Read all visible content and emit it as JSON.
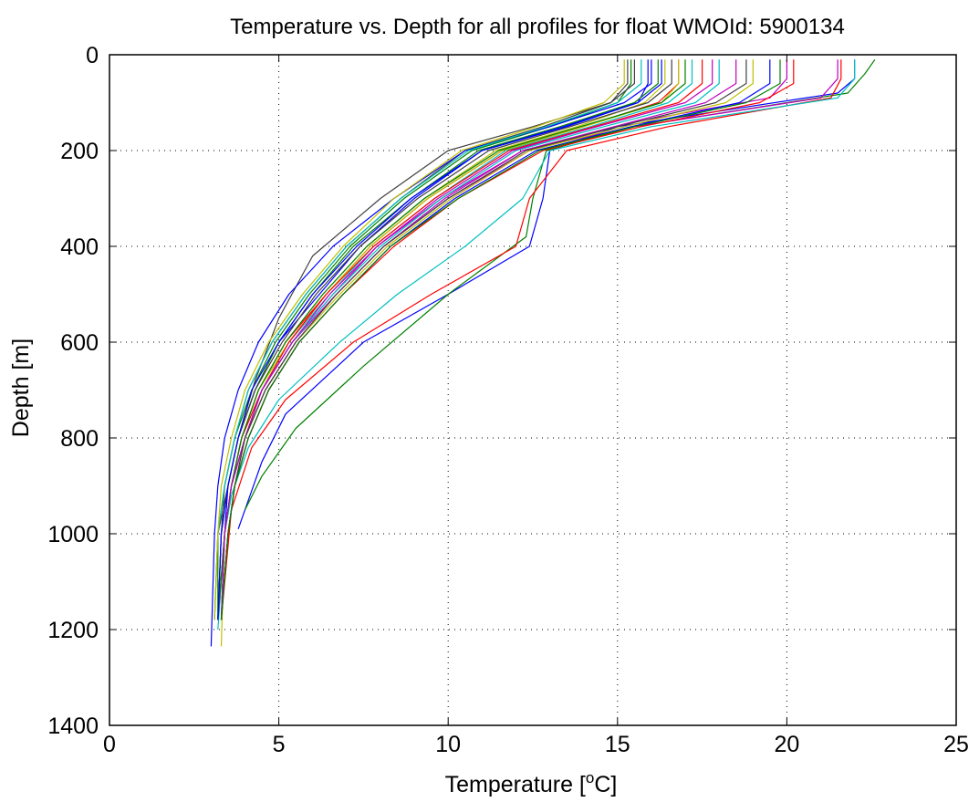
{
  "chart_data": {
    "type": "line",
    "title": "Temperature vs. Depth for all profiles for float WMOId: 5900134",
    "xlabel_prefix": "Temperature [",
    "xlabel_sup": "o",
    "xlabel_suffix": "C]",
    "ylabel": "Depth [m]",
    "xlim": [
      0,
      25
    ],
    "ylim": [
      0,
      1400
    ],
    "y_reversed": true,
    "x_ticks": [
      "0",
      "5",
      "10",
      "15",
      "20",
      "25"
    ],
    "y_ticks": [
      "0",
      "200",
      "400",
      "600",
      "800",
      "1000",
      "1200",
      "1400"
    ],
    "grid": "dotted",
    "legend": "none",
    "series": [
      {
        "color": "#0000ff",
        "x": [
          15.9,
          15.9,
          15.6,
          13.5,
          11.0,
          9.0,
          7.4,
          6.2,
          5.0,
          4.3,
          3.8,
          3.5,
          3.4,
          3.3
        ],
        "y": [
          10,
          60,
          100,
          150,
          200,
          300,
          400,
          500,
          600,
          700,
          800,
          900,
          1000,
          1180
        ]
      },
      {
        "color": "#008000",
        "x": [
          15.4,
          15.4,
          15.0,
          13.0,
          10.7,
          8.7,
          7.1,
          5.9,
          4.9,
          4.2,
          3.7,
          3.4,
          3.2,
          3.2
        ],
        "y": [
          10,
          60,
          100,
          150,
          200,
          300,
          400,
          500,
          600,
          700,
          800,
          900,
          1000,
          1180
        ]
      },
      {
        "color": "#ff0000",
        "x": [
          16.8,
          16.8,
          16.2,
          14.0,
          11.6,
          9.4,
          7.7,
          6.4,
          5.2,
          4.4,
          3.9,
          3.6,
          3.4,
          3.3
        ],
        "y": [
          10,
          60,
          100,
          150,
          200,
          300,
          400,
          500,
          600,
          700,
          800,
          900,
          1000,
          1180
        ]
      },
      {
        "color": "#00bfbf",
        "x": [
          17.2,
          17.2,
          16.5,
          14.2,
          11.7,
          9.6,
          7.8,
          6.5,
          5.3,
          4.5,
          4.0,
          3.6,
          3.4,
          3.3
        ],
        "y": [
          10,
          60,
          100,
          150,
          200,
          300,
          400,
          500,
          600,
          700,
          800,
          900,
          1000,
          1180
        ]
      },
      {
        "color": "#bf00bf",
        "x": [
          20.0,
          20.0,
          19.5,
          15.5,
          12.4,
          10.0,
          8.1,
          6.7,
          5.4,
          4.5,
          4.0,
          3.6,
          3.4,
          3.2
        ],
        "y": [
          10,
          50,
          90,
          140,
          200,
          300,
          400,
          500,
          600,
          700,
          800,
          900,
          1000,
          1180
        ]
      },
      {
        "color": "#bfbf00",
        "x": [
          16.4,
          16.4,
          15.8,
          13.8,
          11.4,
          9.3,
          7.6,
          6.3,
          5.2,
          4.4,
          3.9,
          3.6,
          3.4,
          3.3
        ],
        "y": [
          10,
          60,
          100,
          150,
          200,
          300,
          400,
          500,
          600,
          700,
          800,
          900,
          1000,
          1235
        ]
      },
      {
        "color": "#404040",
        "x": [
          15.3,
          15.3,
          14.8,
          12.8,
          10.5,
          8.6,
          7.0,
          5.8,
          4.8,
          4.1,
          3.7,
          3.4,
          3.3,
          3.2
        ],
        "y": [
          10,
          60,
          100,
          150,
          200,
          300,
          400,
          500,
          600,
          700,
          800,
          900,
          1000,
          1180
        ]
      },
      {
        "color": "#0000ff",
        "x": [
          22.0,
          22.0,
          21.5,
          15.0,
          13.0,
          12.8,
          12.4,
          10.0,
          7.5,
          5.2,
          4.5,
          4.0,
          3.8
        ],
        "y": [
          10,
          50,
          80,
          150,
          200,
          300,
          400,
          500,
          600,
          750,
          850,
          950,
          990
        ]
      },
      {
        "color": "#008000",
        "x": [
          22.6,
          22.3,
          21.8,
          15.5,
          12.9,
          12.5,
          12.3,
          10.0,
          7.5,
          5.5,
          4.5,
          4.0
        ],
        "y": [
          10,
          40,
          80,
          150,
          200,
          300,
          380,
          500,
          650,
          780,
          880,
          950
        ]
      },
      {
        "color": "#ff0000",
        "x": [
          21.6,
          21.6,
          21.3,
          16.5,
          13.5,
          12.4,
          12.0,
          9.5,
          7.2,
          5.2,
          4.2,
          3.6,
          3.3
        ],
        "y": [
          10,
          50,
          90,
          150,
          200,
          300,
          400,
          500,
          600,
          720,
          820,
          950,
          1180
        ]
      },
      {
        "color": "#00bfbf",
        "x": [
          22.0,
          22.0,
          21.5,
          16.0,
          13.0,
          12.2,
          10.5,
          8.5,
          6.8,
          5.0,
          4.1,
          3.6,
          3.4,
          3.2
        ],
        "y": [
          10,
          50,
          90,
          150,
          200,
          300,
          400,
          500,
          600,
          720,
          820,
          920,
          1000,
          1200
        ]
      },
      {
        "color": "#bf00bf",
        "x": [
          21.5,
          21.5,
          21.0,
          15.5,
          12.2,
          9.8,
          7.9,
          6.6,
          5.4,
          4.5,
          4.0,
          3.6,
          3.4,
          3.2
        ],
        "y": [
          10,
          50,
          90,
          150,
          200,
          300,
          400,
          500,
          600,
          700,
          800,
          900,
          1000,
          1180
        ]
      },
      {
        "color": "#bfbf00",
        "x": [
          16.8,
          16.8,
          16.3,
          14.0,
          11.6,
          9.4,
          7.7,
          6.4,
          5.3,
          4.4,
          3.9,
          3.6,
          3.4,
          3.3
        ],
        "y": [
          10,
          60,
          100,
          150,
          200,
          300,
          400,
          500,
          600,
          700,
          800,
          900,
          1000,
          1180
        ]
      },
      {
        "color": "#404040",
        "x": [
          15.5,
          15.5,
          14.8,
          12.5,
          10.0,
          8.0,
          6.0,
          5.0,
          4.3,
          3.8,
          3.5,
          3.2,
          3.1
        ],
        "y": [
          10,
          60,
          100,
          150,
          200,
          300,
          420,
          550,
          680,
          800,
          900,
          1000,
          1180
        ]
      },
      {
        "color": "#0000ff",
        "x": [
          16.0,
          16.0,
          15.2,
          13.0,
          10.5,
          8.4,
          6.6,
          5.3,
          4.4,
          3.8,
          3.4,
          3.2,
          3.1,
          3.0
        ],
        "y": [
          10,
          60,
          100,
          150,
          200,
          300,
          400,
          500,
          600,
          700,
          800,
          900,
          1000,
          1235
        ]
      },
      {
        "color": "#008000",
        "x": [
          16.2,
          16.2,
          15.5,
          13.3,
          10.9,
          8.9,
          7.2,
          6.0,
          5.0,
          4.3,
          3.8,
          3.5,
          3.3,
          3.2
        ],
        "y": [
          10,
          60,
          100,
          150,
          200,
          300,
          400,
          500,
          600,
          700,
          800,
          900,
          1000,
          1180
        ]
      },
      {
        "color": "#ff0000",
        "x": [
          17.5,
          17.5,
          16.8,
          14.3,
          11.8,
          9.6,
          7.8,
          6.4,
          5.3,
          4.5,
          3.9,
          3.6,
          3.4,
          3.3
        ],
        "y": [
          10,
          60,
          100,
          150,
          200,
          300,
          400,
          500,
          600,
          700,
          800,
          900,
          1000,
          1180
        ]
      },
      {
        "color": "#00bfbf",
        "x": [
          18.0,
          18.0,
          17.3,
          14.6,
          12.0,
          9.8,
          8.0,
          6.6,
          5.4,
          4.5,
          4.0,
          3.6,
          3.4,
          3.3
        ],
        "y": [
          10,
          60,
          100,
          150,
          200,
          300,
          400,
          500,
          600,
          700,
          800,
          900,
          1000,
          1180
        ]
      },
      {
        "color": "#bf00bf",
        "x": [
          18.5,
          18.5,
          17.6,
          14.9,
          12.2,
          9.9,
          8.1,
          6.7,
          5.5,
          4.6,
          4.0,
          3.7,
          3.5,
          3.3
        ],
        "y": [
          10,
          60,
          100,
          150,
          200,
          300,
          400,
          500,
          600,
          700,
          800,
          900,
          1000,
          1180
        ]
      },
      {
        "color": "#bfbf00",
        "x": [
          19.0,
          19.0,
          18.2,
          15.2,
          12.4,
          10.1,
          8.2,
          6.8,
          5.5,
          4.6,
          4.0,
          3.7,
          3.5,
          3.3
        ],
        "y": [
          10,
          60,
          100,
          150,
          200,
          300,
          400,
          500,
          600,
          700,
          800,
          900,
          1000,
          1180
        ]
      },
      {
        "color": "#404040",
        "x": [
          16.6,
          16.6,
          15.9,
          13.6,
          11.2,
          9.1,
          7.4,
          6.1,
          5.1,
          4.3,
          3.8,
          3.5,
          3.3,
          3.2
        ],
        "y": [
          10,
          60,
          100,
          150,
          200,
          300,
          400,
          500,
          600,
          700,
          800,
          900,
          1000,
          1180
        ]
      },
      {
        "color": "#0000ff",
        "x": [
          19.5,
          19.5,
          18.6,
          15.4,
          12.6,
          10.2,
          8.3,
          6.9,
          5.6,
          4.7,
          4.1,
          3.7,
          3.5,
          3.3
        ],
        "y": [
          10,
          60,
          100,
          150,
          200,
          300,
          400,
          500,
          600,
          700,
          800,
          900,
          1000,
          1180
        ]
      },
      {
        "color": "#008000",
        "x": [
          17.0,
          17.0,
          16.3,
          13.9,
          11.5,
          9.3,
          7.6,
          6.3,
          5.2,
          4.4,
          3.9,
          3.6,
          3.4,
          3.2
        ],
        "y": [
          10,
          60,
          100,
          150,
          200,
          300,
          400,
          500,
          600,
          700,
          800,
          900,
          1000,
          1180
        ]
      },
      {
        "color": "#ff0000",
        "x": [
          20.2,
          20.2,
          19.2,
          15.7,
          12.8,
          10.3,
          8.4,
          6.9,
          5.6,
          4.7,
          4.1,
          3.7,
          3.5,
          3.3
        ],
        "y": [
          10,
          60,
          100,
          150,
          200,
          300,
          400,
          500,
          600,
          700,
          800,
          900,
          1000,
          1180
        ]
      },
      {
        "color": "#00bfbf",
        "x": [
          15.7,
          15.7,
          15.0,
          12.9,
          10.6,
          8.6,
          7.0,
          5.8,
          4.8,
          4.1,
          3.7,
          3.4,
          3.2,
          3.1
        ],
        "y": [
          10,
          60,
          100,
          150,
          200,
          300,
          400,
          500,
          600,
          700,
          800,
          900,
          1000,
          1180
        ]
      },
      {
        "color": "#bf00bf",
        "x": [
          17.8,
          17.8,
          17.0,
          14.4,
          11.9,
          9.7,
          7.9,
          6.5,
          5.4,
          4.5,
          4.0,
          3.6,
          3.4,
          3.3
        ],
        "y": [
          10,
          60,
          100,
          150,
          200,
          300,
          400,
          500,
          600,
          700,
          800,
          900,
          1000,
          1180
        ]
      },
      {
        "color": "#bfbf00",
        "x": [
          15.2,
          15.2,
          14.6,
          12.6,
          10.4,
          8.4,
          6.9,
          5.7,
          4.7,
          4.0,
          3.6,
          3.3,
          3.2,
          3.1
        ],
        "y": [
          10,
          60,
          100,
          150,
          200,
          300,
          400,
          500,
          600,
          700,
          800,
          900,
          1000,
          1180
        ]
      },
      {
        "color": "#404040",
        "x": [
          18.8,
          18.8,
          17.9,
          15.0,
          12.3,
          10.0,
          8.1,
          6.7,
          5.5,
          4.6,
          4.0,
          3.7,
          3.5,
          3.3
        ],
        "y": [
          10,
          60,
          100,
          150,
          200,
          300,
          400,
          500,
          600,
          700,
          800,
          900,
          1000,
          1180
        ]
      },
      {
        "color": "#0000ff",
        "x": [
          16.3,
          16.3,
          15.6,
          13.4,
          11.0,
          8.9,
          7.3,
          6.0,
          5.0,
          4.2,
          3.8,
          3.5,
          3.3,
          3.2
        ],
        "y": [
          10,
          60,
          100,
          150,
          200,
          300,
          400,
          500,
          600,
          700,
          800,
          900,
          1000,
          1180
        ]
      },
      {
        "color": "#008000",
        "x": [
          19.8,
          19.8,
          18.8,
          15.5,
          12.7,
          10.3,
          8.3,
          6.9,
          5.6,
          4.7,
          4.1,
          3.7,
          3.5,
          3.3
        ],
        "y": [
          10,
          60,
          100,
          150,
          200,
          300,
          400,
          500,
          600,
          700,
          800,
          900,
          1000,
          1180
        ]
      }
    ]
  }
}
